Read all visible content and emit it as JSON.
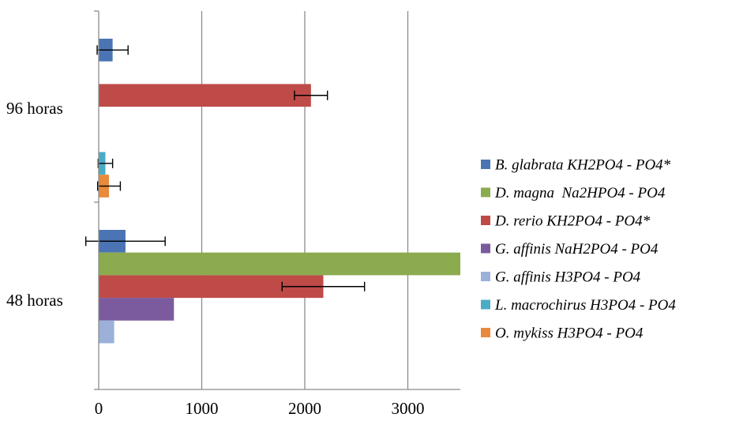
{
  "chart_data": {
    "type": "bar",
    "orientation": "horizontal",
    "categories": [
      "96 horas",
      "48 horas"
    ],
    "series": [
      {
        "name": "B. glabrata KH2PO4 - PO4*",
        "color": "#4A74B4",
        "values": [
          135,
          260
        ],
        "errors": [
          150,
          385
        ]
      },
      {
        "name": "D. magna  Na2HPO4 - PO4",
        "color": "#8BAB4E",
        "values": [
          null,
          3520
        ],
        "errors": [
          null,
          null
        ]
      },
      {
        "name": "D. rerio KH2PO4 - PO4*",
        "color": "#BE4B48",
        "values": [
          2060,
          2180
        ],
        "errors": [
          160,
          400
        ]
      },
      {
        "name": "G. affinis NaH2PO4 - PO4",
        "color": "#7B5B9E",
        "values": [
          null,
          730
        ],
        "errors": [
          null,
          null
        ]
      },
      {
        "name": "G. affinis H3PO4 - PO4",
        "color": "#9BB1DA",
        "values": [
          null,
          150
        ],
        "errors": [
          null,
          null
        ]
      },
      {
        "name": "L. macrochirus H3PO4 - PO4",
        "color": "#4BACC6",
        "values": [
          65,
          null
        ],
        "errors": [
          70,
          null
        ]
      },
      {
        "name": "O. mykiss H3PO4 - PO4",
        "color": "#E8893C",
        "values": [
          100,
          null
        ],
        "errors": [
          110,
          null
        ]
      }
    ],
    "xticks": [
      0,
      1000,
      2000,
      3000
    ],
    "xlim": [
      0,
      3520
    ],
    "grid": "vertical",
    "legend": "right"
  }
}
